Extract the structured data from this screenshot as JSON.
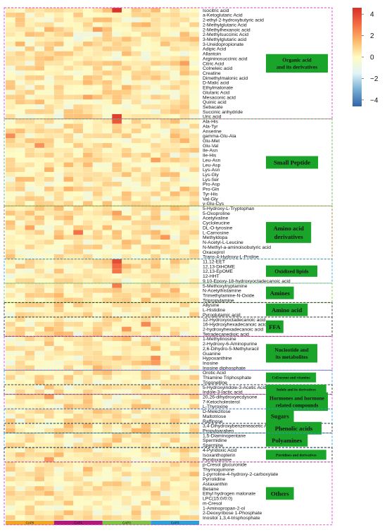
{
  "chart_data": {
    "type": "heatmap",
    "columns": [
      "CAP0",
      "CAP1",
      "CAP3",
      "CAP3"
    ],
    "samples_per_group": [
      5,
      5,
      5,
      5
    ],
    "group_colors": [
      "#f4a51d",
      "#b3177a",
      "#7dc242",
      "#2a9fd8"
    ],
    "colorbar": {
      "range": [
        -4.6,
        4.6
      ],
      "ticks": [
        4,
        2,
        0,
        -2,
        -4
      ],
      "colors": [
        "#3063a8",
        "#74add1",
        "#e0f3f8",
        "#fffbc2",
        "#fdb769",
        "#f46d43",
        "#d73027"
      ]
    },
    "rows": [
      "Isocitric acid",
      "a-Ketoglutaric Acid",
      "2-ethyl-2-hydroxybutyric acid",
      "2-Methylglutaric Acid",
      "2-Methylhexanoic acid",
      "2-Methylsuccinic Acid",
      "3-Methylglutaric acid",
      "3-Ureidopropionate",
      "Adipic Acid",
      "Allantoin",
      "Argininosuccinic acid",
      "Citric Acid",
      "Colneleic acid",
      "Creatine",
      "Dimethylmalonic acid",
      "D-Malic acid",
      "Ethylmalonate",
      "Glutaric Acid",
      "Mesaconic acid",
      "Quinic acid",
      "Sebacate",
      "Succinic anhydride",
      "Uric acid",
      "Ala-His",
      "Ala-Tyr",
      "Anserine",
      "gamma-Glu-Ala",
      "Glu-Met",
      "Glu-Val",
      "Ile-Asn",
      "Ile-His",
      "Leu-Asn",
      "Leu-Asp",
      "Lys-Asn",
      "Lys-Gly",
      "Lys-Ser",
      "Pro-Asp",
      "Pro-Gln",
      "Tyr-His",
      "Val-Gly",
      "γ-Glu-Cys",
      "5-Hydroxy-L-Tryptophan",
      "5-Oxoproline",
      "Acetylvaline",
      "Cycloleucine",
      "DL-O-tyrosine",
      "L-Carnosine",
      "Methyldopa",
      "N-Acetyl-L-Leucine",
      "N-Methyl-a-aminoisobutyric acid",
      "Oxaceprol",
      "Trans-4-Hydroxy-L-Proline",
      "11,12-EET",
      "12,13-DiHOME",
      "12,13-EpOME",
      "12-HHT",
      "9,10-Epoxy-18-hydroxyoctadecanoic acid",
      "5-Methoxytryptamine",
      "N-Acetylhistamine",
      "Trimethylamine-N-Oxide",
      "Tripropylamine",
      "Allysine",
      "L-Histidine",
      "Pyroglutamic acid",
      "12-Hydroxyoctadecanoic acid",
      "16-Hydroxyhexadecanoic acid",
      "2-hydroxyhexadecanoic acid",
      "Tetradecanedioic acid",
      "1-Methylinosine",
      "2-Hydroxy-6-Aminopurine",
      "2,6-Dihydro-5-Methyluracil",
      "Guanine",
      "Hypoxanthine",
      "Inosine",
      "Inosine diphosphate",
      "Orotic Acid",
      "Thiamine Triphosphate",
      "Trigonelline",
      "5-Hydroxyindole-3-Acetic Acid",
      "Indole-3-lactic acid",
      "20,26-dihydroxyecdysone",
      "7-Ketocholesterol",
      "L-Thyroxine",
      "D-Melezitose",
      "Maltotriose",
      "Raffinose",
      "3,4-Dihydroxybenzeneacetic Acid",
      "Propylparaben",
      "1,5-Diaminopentane",
      "Spermidine",
      "Spermine",
      "4-Pyridoxic Acid",
      "Isoxanthopterin",
      "Pyridoxamine",
      "p-Cresol glucuronide",
      "Thymoquinone",
      "1-pyrroline-4-hydroxy-2-carboxylate",
      "Pyrrolidine",
      "Astaxanthin",
      "Betaine",
      "Ethyl hydrogen malonate",
      "LPC(15:0/0:0)",
      "m-Cresol",
      "1-Aminopropan-2-ol",
      "2-Deoxyribose 1-Phosphate",
      "Inositol 1,3,4-trisphosphate"
    ],
    "groups": [
      {
        "name": "Organic acid and its derivatives",
        "rows": [
          0,
          22
        ],
        "color": "#e040c8",
        "label_lines": [
          "Organic acid",
          "and its derivatives"
        ]
      },
      {
        "name": "Small Peptide",
        "rows": [
          23,
          40
        ],
        "color": "#59b94a",
        "label_lines": [
          "Small Peptide"
        ]
      },
      {
        "name": "Amino acid derivatives",
        "rows": [
          41,
          51
        ],
        "color": "#9a7a20",
        "label_lines": [
          "Amino acid",
          "derivatives"
        ]
      },
      {
        "name": "Oxidized lipids",
        "rows": [
          52,
          56
        ],
        "color": "#2a9fd8",
        "label_lines": [
          "Oxidized lipids"
        ]
      },
      {
        "name": "Amines",
        "rows": [
          57,
          60
        ],
        "color": "#7dc242",
        "label_lines": [
          "Amines"
        ]
      },
      {
        "name": "Amino acid",
        "rows": [
          61,
          63
        ],
        "color": "#333333",
        "label_lines": [
          "Amino acid"
        ]
      },
      {
        "name": "FFA",
        "rows": [
          64,
          67
        ],
        "color": "#333333",
        "label_lines": [
          "FFA"
        ]
      },
      {
        "name": "Nucleotide and its metabolites",
        "rows": [
          68,
          74
        ],
        "color": "#e040c8",
        "label_lines": [
          "Nucleotide and",
          "its metabolites"
        ]
      },
      {
        "name": "CoEnzyme and vitamins",
        "rows": [
          75,
          77
        ],
        "color": "#2a9fd8",
        "label_lines": [
          "CoEnzyme and vitamins"
        ]
      },
      {
        "name": "Indole and its derivatives",
        "rows": [
          78,
          79
        ],
        "color": "#333333",
        "label_lines": [
          "Indole and its derivatives"
        ]
      },
      {
        "name": "Hormones and hormone related compounds",
        "rows": [
          80,
          82
        ],
        "color": "#e040c8",
        "label_lines": [
          "Hormones and hormone",
          "related compounds"
        ]
      },
      {
        "name": "Sugars",
        "rows": [
          83,
          85
        ],
        "color": "#2a9fd8",
        "label_lines": [
          "Sugars"
        ]
      },
      {
        "name": "Phenolic acids",
        "rows": [
          86,
          87
        ],
        "color": "#333333",
        "label_lines": [
          "Phenolic acids"
        ]
      },
      {
        "name": "Polyamines",
        "rows": [
          88,
          90
        ],
        "color": "#2a9fd8",
        "label_lines": [
          "Polyamines"
        ]
      },
      {
        "name": "Pteridines and derivatives",
        "rows": [
          91,
          93
        ],
        "color": "#333333",
        "label_lines": [
          "Pteridines and derivatives"
        ]
      },
      {
        "name": "Others",
        "rows": [
          94,
          106
        ],
        "color": "#e040c8",
        "label_lines": [
          "Others"
        ]
      }
    ],
    "hot_cells": [
      {
        "row": 0,
        "col": 11,
        "value": 4.5
      },
      {
        "row": 22,
        "col": 11,
        "value": 4.2
      },
      {
        "row": 23,
        "col": 11,
        "value": 3.6
      },
      {
        "row": 52,
        "col": 11,
        "value": 3.9
      },
      {
        "row": 53,
        "col": 11,
        "value": 3.2
      },
      {
        "row": 54,
        "col": 11,
        "value": 2.9
      },
      {
        "row": 57,
        "col": 11,
        "value": 2.8
      },
      {
        "row": 46,
        "col": 7,
        "value": 3.0
      },
      {
        "row": 26,
        "col": 0,
        "value": 2.4
      },
      {
        "row": 28,
        "col": 3,
        "value": 2.3
      },
      {
        "row": 47,
        "col": 16,
        "value": 2.2
      },
      {
        "row": 65,
        "col": 14,
        "value": 2.5
      },
      {
        "row": 66,
        "col": 12,
        "value": 2.2
      },
      {
        "row": 72,
        "col": 15,
        "value": 2.4
      },
      {
        "row": 73,
        "col": 15,
        "value": 2.1
      },
      {
        "row": 11,
        "col": 18,
        "value": 2.0
      },
      {
        "row": 4,
        "col": 9,
        "value": 2.1
      },
      {
        "row": 42,
        "col": 11,
        "value": 2.0
      },
      {
        "row": 93,
        "col": 4,
        "value": 2.1
      },
      {
        "row": 80,
        "col": 4,
        "value": 2.0
      },
      {
        "row": 18,
        "col": 8,
        "value": 1.9
      },
      {
        "row": 31,
        "col": 15,
        "value": 2.0
      },
      {
        "row": 45,
        "col": 2,
        "value": 1.9
      }
    ]
  }
}
